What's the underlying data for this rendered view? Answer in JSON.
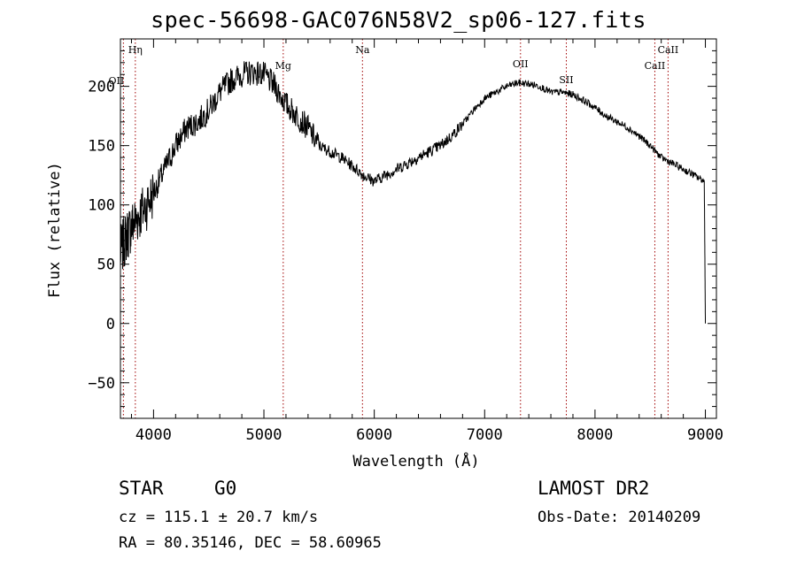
{
  "chart_data": {
    "type": "line",
    "title": "spec-56698-GAC076N58V2_sp06-127.fits",
    "xlabel": "Wavelength (Å)",
    "ylabel": "Flux (relative)",
    "xlim": [
      3700,
      9100
    ],
    "ylim": [
      -80,
      240
    ],
    "xticks": [
      4000,
      5000,
      6000,
      7000,
      8000,
      9000
    ],
    "yticks": [
      -50,
      0,
      50,
      100,
      150,
      200
    ],
    "line_markers": [
      {
        "name": "Hη",
        "x": 3835
      },
      {
        "name": "OII",
        "x": 3727
      },
      {
        "name": "Mg",
        "x": 5175
      },
      {
        "name": "Na",
        "x": 5893
      },
      {
        "name": "OII",
        "x": 7325
      },
      {
        "name": "SII",
        "x": 7740
      },
      {
        "name": "CaII",
        "x": 8542
      },
      {
        "name": "CaII",
        "x": 8662
      }
    ],
    "series": [
      {
        "name": "flux",
        "x": [
          3700,
          3760,
          3820,
          3900,
          4000,
          4100,
          4200,
          4300,
          4400,
          4500,
          4600,
          4700,
          4800,
          4900,
          5000,
          5100,
          5200,
          5300,
          5400,
          5500,
          5600,
          5700,
          5800,
          5900,
          6000,
          6100,
          6200,
          6300,
          6400,
          6500,
          6600,
          6700,
          6800,
          6900,
          7000,
          7100,
          7200,
          7300,
          7400,
          7500,
          7600,
          7700,
          7800,
          7900,
          8000,
          8100,
          8200,
          8300,
          8400,
          8500,
          8600,
          8700,
          8800,
          8900,
          8990,
          9000
        ],
        "y": [
          60,
          75,
          85,
          95,
          110,
          130,
          150,
          165,
          170,
          180,
          195,
          205,
          210,
          212,
          210,
          200,
          185,
          175,
          165,
          150,
          145,
          140,
          133,
          125,
          120,
          125,
          130,
          135,
          140,
          145,
          150,
          158,
          168,
          180,
          190,
          195,
          200,
          203,
          202,
          200,
          195,
          195,
          193,
          188,
          182,
          175,
          170,
          165,
          158,
          150,
          140,
          135,
          130,
          125,
          120,
          0
        ]
      }
    ]
  },
  "footer": {
    "class": "STAR",
    "subclass": "G0",
    "survey": "LAMOST DR2",
    "cz": "cz = 115.1 ± 20.7 km/s",
    "obs_date": "Obs-Date: 20140209",
    "radec": "RA =  80.35146, DEC =  58.60965"
  },
  "colors": {
    "line": "#000000",
    "marker": "#a00000"
  }
}
